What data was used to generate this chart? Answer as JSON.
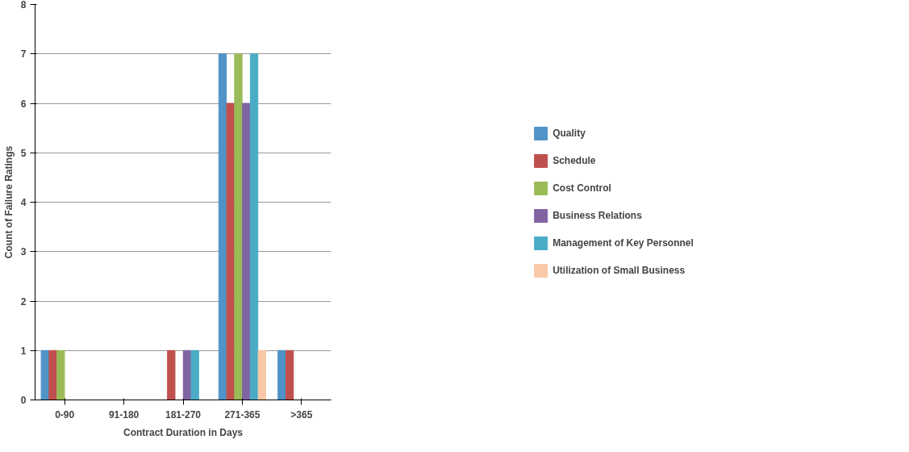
{
  "chart_data": {
    "type": "bar",
    "xlabel": "Contract Duration in Days",
    "ylabel": "Count of Failure Ratings",
    "categories": [
      "0-90",
      "91-180",
      "181-270",
      "271-365",
      ">365"
    ],
    "series": [
      {
        "name": "Quality",
        "color": "#4f93c8",
        "values": [
          1,
          0,
          0,
          7,
          1
        ]
      },
      {
        "name": "Schedule",
        "color": "#c0504d",
        "values": [
          1,
          0,
          1,
          6,
          1
        ]
      },
      {
        "name": "Cost Control",
        "color": "#9bbb59",
        "values": [
          1,
          0,
          0,
          7,
          0
        ]
      },
      {
        "name": "Business Relations",
        "color": "#8064a2",
        "values": [
          0,
          0,
          1,
          6,
          0
        ]
      },
      {
        "name": "Management of Key Personnel",
        "color": "#4bacc6",
        "values": [
          0,
          0,
          1,
          7,
          0
        ]
      },
      {
        "name": "Utilization of Small Business",
        "color": "#f9c9a8",
        "values": [
          0,
          0,
          0,
          1,
          0
        ]
      }
    ],
    "ylim": [
      0,
      8
    ],
    "yticks": [
      0,
      1,
      2,
      3,
      4,
      5,
      6,
      7,
      8
    ],
    "grid": "y",
    "legend": "right"
  }
}
